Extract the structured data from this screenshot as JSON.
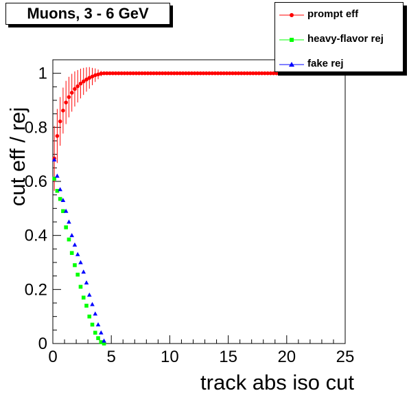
{
  "chart_data": {
    "type": "scatter",
    "title": "Muons, 3 - 6 GeV",
    "xlabel": "track abs iso cut",
    "ylabel": "cut eff / rej",
    "xlim": [
      0,
      25
    ],
    "ylim": [
      0,
      1.05
    ],
    "x_ticks": [
      0,
      5,
      10,
      15,
      20,
      25
    ],
    "y_ticks": [
      0,
      0.2,
      0.4,
      0.6,
      0.8,
      1
    ],
    "x_tick_labels": [
      "0",
      "5",
      "10",
      "15",
      "20",
      "25"
    ],
    "y_tick_labels": [
      "0",
      "0.2",
      "0.4",
      "0.6",
      "0.8",
      "1"
    ],
    "grid": false,
    "legend_position": "top-right",
    "series": [
      {
        "name": "prompt eff",
        "color": "#ff0000",
        "marker": "circle",
        "x": [
          0.125,
          0.375,
          0.625,
          0.875,
          1.125,
          1.375,
          1.625,
          1.875,
          2.125,
          2.375,
          2.625,
          2.875,
          3.125,
          3.375,
          3.625,
          3.875,
          4.125,
          4.375,
          4.625,
          4.875,
          5.125,
          5.375,
          5.625,
          5.875,
          6.125,
          6.375,
          6.625,
          6.875,
          7.125,
          7.375,
          7.625,
          7.875,
          8.125,
          8.375,
          8.625,
          8.875,
          9.125,
          9.375,
          9.625,
          9.875,
          10.125,
          10.375,
          10.625,
          10.875,
          11.125,
          11.375,
          11.625,
          11.875,
          12.125,
          12.375,
          12.625,
          12.875,
          13.125,
          13.375,
          13.625,
          13.875,
          14.125,
          14.375,
          14.625,
          14.875,
          15.125,
          15.375,
          15.625,
          15.875,
          16.125,
          16.375,
          16.625,
          16.875,
          17.125,
          17.375,
          17.625,
          17.875,
          18.125,
          18.375,
          18.625,
          18.875,
          19.125,
          19.375,
          19.625,
          19.875
        ],
        "y": [
          0.685,
          0.768,
          0.822,
          0.862,
          0.892,
          0.912,
          0.928,
          0.942,
          0.952,
          0.962,
          0.97,
          0.977,
          0.983,
          0.988,
          0.993,
          0.996,
          0.999,
          1,
          1,
          1,
          1,
          1,
          1,
          1,
          1,
          1,
          1,
          1,
          1,
          1,
          1,
          1,
          1,
          1,
          1,
          1,
          1,
          1,
          1,
          1,
          1,
          1,
          1,
          1,
          1,
          1,
          1,
          1,
          1,
          1,
          1,
          1,
          1,
          1,
          1,
          1,
          1,
          1,
          1,
          1,
          1,
          1,
          1,
          1,
          1,
          1,
          1,
          1,
          1,
          1,
          1,
          1,
          1,
          1,
          1,
          1,
          1,
          1,
          1,
          1
        ],
        "yerr": [
          0.12,
          0.1,
          0.09,
          0.085,
          0.08,
          0.075,
          0.07,
          0.065,
          0.06,
          0.055,
          0.05,
          0.045,
          0.04,
          0.032,
          0.025,
          0.018,
          0.01,
          0,
          0,
          0,
          0,
          0,
          0,
          0,
          0,
          0,
          0,
          0,
          0,
          0,
          0,
          0,
          0,
          0,
          0,
          0,
          0,
          0,
          0,
          0,
          0,
          0,
          0,
          0,
          0,
          0,
          0,
          0,
          0,
          0,
          0,
          0,
          0,
          0,
          0,
          0,
          0,
          0,
          0,
          0,
          0,
          0,
          0,
          0,
          0,
          0,
          0,
          0,
          0,
          0,
          0,
          0,
          0,
          0,
          0,
          0,
          0,
          0,
          0,
          0
        ]
      },
      {
        "name": "heavy-flavor rej",
        "color": "#00ff00",
        "marker": "square",
        "x": [
          0.125,
          0.375,
          0.625,
          0.875,
          1.125,
          1.375,
          1.625,
          1.875,
          2.125,
          2.375,
          2.625,
          2.875,
          3.125,
          3.375,
          3.625,
          3.875,
          4.125,
          4.375
        ],
        "y": [
          0.61,
          0.565,
          0.535,
          0.49,
          0.43,
          0.385,
          0.335,
          0.29,
          0.255,
          0.21,
          0.17,
          0.14,
          0.1,
          0.07,
          0.04,
          0.02,
          0.005,
          0
        ]
      },
      {
        "name": "fake rej",
        "color": "#0000ff",
        "marker": "triangle",
        "x": [
          0.125,
          0.375,
          0.625,
          0.875,
          1.125,
          1.375,
          1.625,
          1.875,
          2.125,
          2.375,
          2.625,
          2.875,
          3.125,
          3.375,
          3.625,
          3.875,
          4.125,
          4.375
        ],
        "y": [
          0.68,
          0.62,
          0.57,
          0.53,
          0.49,
          0.45,
          0.4,
          0.365,
          0.33,
          0.3,
          0.265,
          0.225,
          0.18,
          0.145,
          0.11,
          0.07,
          0.04,
          0.01
        ]
      }
    ]
  }
}
